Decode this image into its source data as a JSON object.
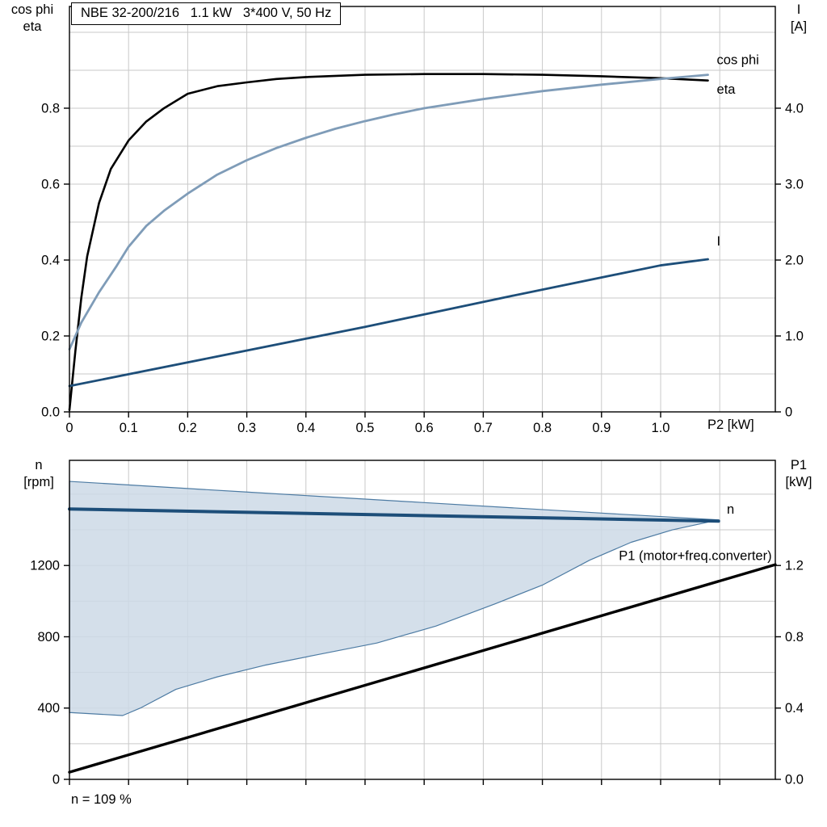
{
  "header": {
    "title_box": "NBE 32-200/216   1.1 kW   3*400 V, 50 Hz"
  },
  "footer": {
    "note": "n = 109 %"
  },
  "colors": {
    "eta": "#000000",
    "cos_phi": "#7f9cb8",
    "current": "#1d4e79",
    "speed": "#1d4e79",
    "p1": "#000000",
    "duty_fill": "#cdd9e6",
    "duty_stroke": "#4d7ba3",
    "grid": "#c9c9c9",
    "frame": "#000000"
  },
  "chart_data": [
    {
      "id": "motor-efficiency-chart",
      "type": "line",
      "title": "NBE 32-200/216   1.1 kW   3*400 V, 50 Hz",
      "x": {
        "label": "P2 [kW]",
        "min": 0,
        "max": 1.194,
        "tick_values": [
          0,
          0.1,
          0.2,
          0.3,
          0.4,
          0.5,
          0.6,
          0.7,
          0.8,
          0.9,
          1.0
        ],
        "tick_labels": [
          "0",
          "0.1",
          "0.2",
          "0.3",
          "0.4",
          "0.5",
          "0.6",
          "0.7",
          "0.8",
          "0.9",
          "1.0"
        ],
        "grid": [
          0.1,
          0.2,
          0.3,
          0.4,
          0.5,
          0.6,
          0.7,
          0.8,
          0.9,
          1.0,
          1.1
        ]
      },
      "left_axis": {
        "title_lines": [
          "cos phi",
          "eta"
        ],
        "min": 0,
        "max": 1.068,
        "tick_values": [
          0,
          0.2,
          0.4,
          0.6,
          0.8
        ],
        "tick_labels": [
          "0.0",
          "0.2",
          "0.4",
          "0.6",
          "0.8"
        ],
        "grid": [
          0.1,
          0.2,
          0.3,
          0.4,
          0.5,
          0.6,
          0.7,
          0.8,
          0.9,
          1.0
        ]
      },
      "right_axis": {
        "title_lines": [
          "I",
          "[A]"
        ],
        "min": 0,
        "max": 5.34,
        "tick_values": [
          0,
          1,
          2,
          3,
          4
        ],
        "tick_labels": [
          "0",
          "1.0",
          "2.0",
          "3.0",
          "4.0"
        ]
      },
      "series": [
        {
          "name": "eta",
          "axis": "left",
          "color": "#000000",
          "width": 2.6,
          "points": [
            [
              0,
              0.005
            ],
            [
              0.01,
              0.16
            ],
            [
              0.02,
              0.3
            ],
            [
              0.03,
              0.41
            ],
            [
              0.05,
              0.55
            ],
            [
              0.07,
              0.64
            ],
            [
              0.1,
              0.715
            ],
            [
              0.13,
              0.765
            ],
            [
              0.16,
              0.8
            ],
            [
              0.2,
              0.838
            ],
            [
              0.25,
              0.858
            ],
            [
              0.3,
              0.868
            ],
            [
              0.35,
              0.877
            ],
            [
              0.4,
              0.882
            ],
            [
              0.5,
              0.888
            ],
            [
              0.6,
              0.89
            ],
            [
              0.7,
              0.89
            ],
            [
              0.8,
              0.888
            ],
            [
              0.9,
              0.884
            ],
            [
              1.0,
              0.879
            ],
            [
              1.08,
              0.873
            ]
          ]
        },
        {
          "name": "cos phi",
          "axis": "left",
          "color": "#7f9cb8",
          "width": 2.8,
          "points": [
            [
              0,
              0.165
            ],
            [
              0.02,
              0.235
            ],
            [
              0.05,
              0.315
            ],
            [
              0.08,
              0.385
            ],
            [
              0.1,
              0.435
            ],
            [
              0.13,
              0.49
            ],
            [
              0.16,
              0.53
            ],
            [
              0.2,
              0.575
            ],
            [
              0.25,
              0.625
            ],
            [
              0.3,
              0.663
            ],
            [
              0.35,
              0.695
            ],
            [
              0.4,
              0.722
            ],
            [
              0.45,
              0.746
            ],
            [
              0.5,
              0.766
            ],
            [
              0.55,
              0.784
            ],
            [
              0.6,
              0.8
            ],
            [
              0.7,
              0.824
            ],
            [
              0.8,
              0.845
            ],
            [
              0.9,
              0.862
            ],
            [
              1.0,
              0.877
            ],
            [
              1.08,
              0.888
            ]
          ]
        },
        {
          "name": "I",
          "axis": "right",
          "color": "#1d4e79",
          "width": 2.8,
          "points": [
            [
              0,
              0.34
            ],
            [
              0.25,
              0.73
            ],
            [
              0.5,
              1.12
            ],
            [
              0.75,
              1.53
            ],
            [
              1.0,
              1.93
            ],
            [
              1.08,
              2.01
            ]
          ]
        }
      ],
      "labels": [
        {
          "name": "cos-phi-label",
          "text": "cos phi",
          "color": "#7f9cb8",
          "x": 1.095,
          "y": 0.925,
          "axis": "left",
          "anchor": "start"
        },
        {
          "name": "eta-label",
          "text": "eta",
          "color": "#000000",
          "x": 1.095,
          "y": 0.848,
          "axis": "left",
          "anchor": "start"
        },
        {
          "name": "current-label",
          "text": "I",
          "color": "#1d4e79",
          "x": 1.095,
          "y": 2.24,
          "axis": "right",
          "anchor": "start"
        }
      ]
    },
    {
      "id": "speed-power-chart",
      "type": "line",
      "x": {
        "label": "",
        "min": 0,
        "max": 1.194,
        "tick_values": [
          0,
          0.1,
          0.2,
          0.3,
          0.4,
          0.5,
          0.6,
          0.7,
          0.8,
          0.9,
          1.0,
          1.1
        ],
        "tick_labels": [],
        "grid": [
          0.1,
          0.2,
          0.3,
          0.4,
          0.5,
          0.6,
          0.7,
          0.8,
          0.9,
          1.0,
          1.1
        ]
      },
      "left_axis": {
        "title_lines": [
          "n",
          "[rpm]"
        ],
        "min": 0,
        "max": 1790,
        "tick_values": [
          0,
          400,
          800,
          1200
        ],
        "tick_labels": [
          "0",
          "400",
          "800",
          "1200"
        ],
        "grid": [
          200,
          400,
          600,
          800,
          1000,
          1200,
          1400,
          1600
        ]
      },
      "right_axis": {
        "title_lines": [
          "P1",
          "[kW]"
        ],
        "min": 0,
        "max": 1.79,
        "tick_values": [
          0,
          0.4,
          0.8,
          1.2
        ],
        "tick_labels": [
          "0.0",
          "0.4",
          "0.8",
          "1.2"
        ]
      },
      "area": {
        "name": "duty-field",
        "axis": "left",
        "fill": "#cdd9e6",
        "fill_opacity": 0.85,
        "stroke": "#4d7ba3",
        "upper": [
          [
            0,
            1672
          ],
          [
            0.3,
            1612
          ],
          [
            0.6,
            1553
          ],
          [
            0.9,
            1494
          ],
          [
            1.098,
            1456
          ]
        ],
        "lower": [
          [
            0,
            375
          ],
          [
            0.09,
            358
          ],
          [
            0.12,
            400
          ],
          [
            0.18,
            505
          ],
          [
            0.25,
            575
          ],
          [
            0.33,
            640
          ],
          [
            0.42,
            700
          ],
          [
            0.52,
            765
          ],
          [
            0.62,
            860
          ],
          [
            0.72,
            985
          ],
          [
            0.8,
            1090
          ],
          [
            0.88,
            1230
          ],
          [
            0.95,
            1330
          ],
          [
            1.02,
            1400
          ],
          [
            1.098,
            1456
          ]
        ]
      },
      "series": [
        {
          "name": "n",
          "axis": "left",
          "color": "#1d4e79",
          "width": 4.0,
          "points": [
            [
              0,
              1517
            ],
            [
              1.098,
              1449
            ]
          ]
        },
        {
          "name": "P1 (motor+freq.converter)",
          "axis": "right",
          "color": "#000000",
          "width": 3.4,
          "points": [
            [
              0,
              0.04
            ],
            [
              1.194,
              1.205
            ]
          ]
        }
      ],
      "labels": [
        {
          "name": "speed-label",
          "text": "n",
          "color": "#1d4e79",
          "x": 1.112,
          "y": 1510,
          "axis": "left",
          "anchor": "start"
        },
        {
          "name": "p1-label",
          "text": "P1 (motor+freq.converter)",
          "color": "#000000",
          "x": 1.188,
          "y": 1.25,
          "axis": "right",
          "anchor": "end"
        }
      ],
      "footnote": "n = 109 %"
    }
  ]
}
